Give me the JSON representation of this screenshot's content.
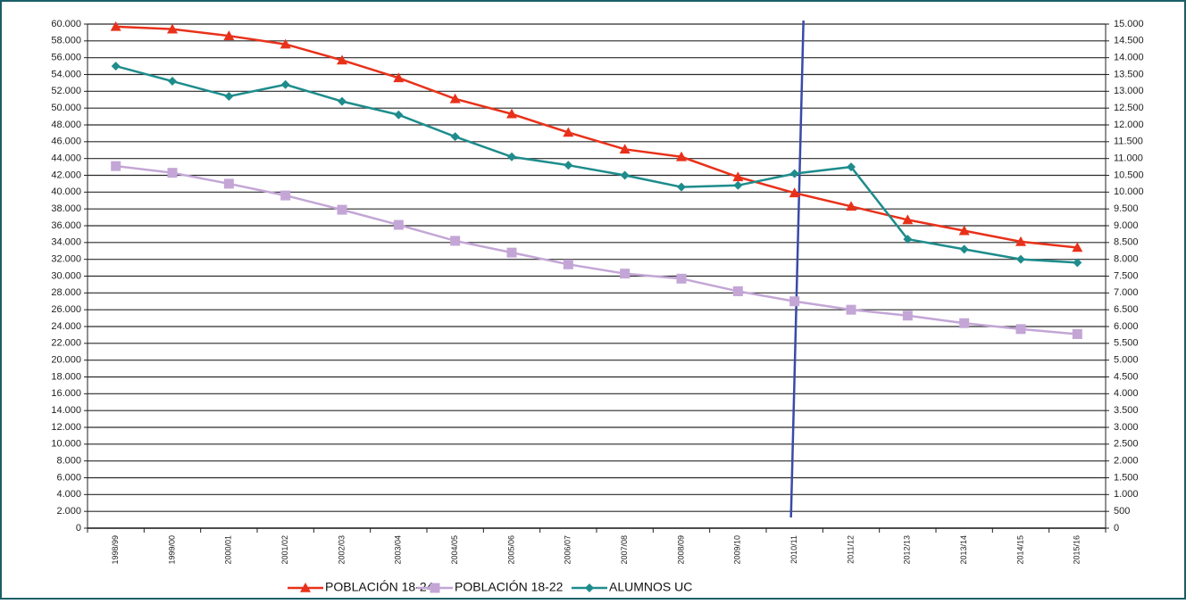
{
  "chart_data": {
    "type": "line",
    "categories": [
      "1998/99",
      "1999/00",
      "2000/01",
      "2001/02",
      "2002/03",
      "2003/04",
      "2004/05",
      "2005/06",
      "2006/07",
      "2007/08",
      "2008/09",
      "2009/10",
      "2010/11",
      "2011/12",
      "2012/13",
      "2013/14",
      "2014/15",
      "2015/16"
    ],
    "series": [
      {
        "name": "POBLACIÓN 18-24",
        "color": "#e8311a",
        "marker": "triangle",
        "axis": "y",
        "values": [
          59700,
          59400,
          58600,
          57600,
          55700,
          53600,
          51100,
          49300,
          47100,
          45100,
          44200,
          41800,
          39900,
          38300,
          36700,
          35400,
          34100,
          33400
        ]
      },
      {
        "name": "POBLACIÓN 18-22",
        "color": "#c3a6d6",
        "marker": "square",
        "axis": "y",
        "values": [
          43100,
          42300,
          41000,
          39600,
          37900,
          36100,
          34200,
          32800,
          31400,
          30300,
          29700,
          28200,
          27000,
          26000,
          25300,
          24400,
          23700,
          23100
        ]
      },
      {
        "name": "ALUMNOS UC",
        "color": "#1e8c8c",
        "marker": "diamond",
        "axis": "y2",
        "values": [
          13750,
          13300,
          12850,
          13200,
          12700,
          12300,
          11650,
          11050,
          10800,
          10500,
          10150,
          10200,
          10550,
          10750,
          8600,
          8300,
          8000,
          7900
        ]
      }
    ],
    "ylim": [
      0,
      60000
    ],
    "yticks": [
      0,
      {
        "value": 2000,
        "label": "2.000"
      },
      {
        "value": 4000,
        "label": "4.000"
      },
      {
        "value": 6000,
        "label": "6.000"
      },
      {
        "value": 8000,
        "label": "8.000"
      },
      {
        "value": 10000,
        "label": "10.000"
      },
      {
        "value": 12000,
        "label": "12.000"
      },
      {
        "value": 14000,
        "label": "14.000"
      },
      {
        "value": 16000,
        "label": "16.000"
      },
      {
        "value": 18000,
        "label": "18.000"
      },
      {
        "value": 20000,
        "label": "20.000"
      },
      {
        "value": 22000,
        "label": "22.000"
      },
      {
        "value": 24000,
        "label": "24.000"
      },
      {
        "value": 26000,
        "label": "26.000"
      },
      {
        "value": 28000,
        "label": "28.000"
      },
      {
        "value": 30000,
        "label": "30.000"
      },
      {
        "value": 32000,
        "label": "32.000"
      },
      {
        "value": 34000,
        "label": "34.000"
      },
      {
        "value": 36000,
        "label": "36.000"
      },
      {
        "value": 38000,
        "label": "38.000"
      },
      {
        "value": 40000,
        "label": "40.000"
      },
      {
        "value": 42000,
        "label": "42.000"
      },
      {
        "value": 44000,
        "label": "44.000"
      },
      {
        "value": 46000,
        "label": "46.000"
      },
      {
        "value": 48000,
        "label": "48.000"
      },
      {
        "value": 50000,
        "label": "50.000"
      },
      {
        "value": 52000,
        "label": "52.000"
      },
      {
        "value": 54000,
        "label": "54.000"
      },
      {
        "value": 56000,
        "label": "56.000"
      },
      {
        "value": 58000,
        "label": "58.000"
      },
      {
        "value": 60000,
        "label": "60.000"
      }
    ],
    "y2lim": [
      0,
      15000
    ],
    "y2ticks": [
      0,
      500,
      {
        "value": 1000,
        "label": "1.000"
      },
      {
        "value": 1500,
        "label": "1.500"
      },
      {
        "value": 2000,
        "label": "2.000"
      },
      {
        "value": 2500,
        "label": "2.500"
      },
      {
        "value": 3000,
        "label": "3.000"
      },
      {
        "value": 3500,
        "label": "3.500"
      },
      {
        "value": 4000,
        "label": "4.000"
      },
      {
        "value": 4500,
        "label": "4.500"
      },
      {
        "value": 5000,
        "label": "5.000"
      },
      {
        "value": 5500,
        "label": "5.500"
      },
      {
        "value": 6000,
        "label": "6.000"
      },
      {
        "value": 6500,
        "label": "6.500"
      },
      {
        "value": 7000,
        "label": "7.000"
      },
      {
        "value": 7500,
        "label": "7.500"
      },
      {
        "value": 8000,
        "label": "8.000"
      },
      {
        "value": 8500,
        "label": "8.500"
      },
      {
        "value": 9000,
        "label": "9.000"
      },
      {
        "value": 9500,
        "label": "9.500"
      },
      {
        "value": 10000,
        "label": "10.000"
      },
      {
        "value": 10500,
        "label": "10.500"
      },
      {
        "value": 11000,
        "label": "11.000"
      },
      {
        "value": 11500,
        "label": "11.500"
      },
      {
        "value": 12000,
        "label": "12.000"
      },
      {
        "value": 12500,
        "label": "12.500"
      },
      {
        "value": 13000,
        "label": "13.000"
      },
      {
        "value": 13500,
        "label": "13.500"
      },
      {
        "value": 14000,
        "label": "14.000"
      },
      {
        "value": 14500,
        "label": "14.500"
      },
      {
        "value": 15000,
        "label": "15.000"
      }
    ],
    "grid": true,
    "vline_category": "2010/11",
    "legend": "bottom"
  }
}
